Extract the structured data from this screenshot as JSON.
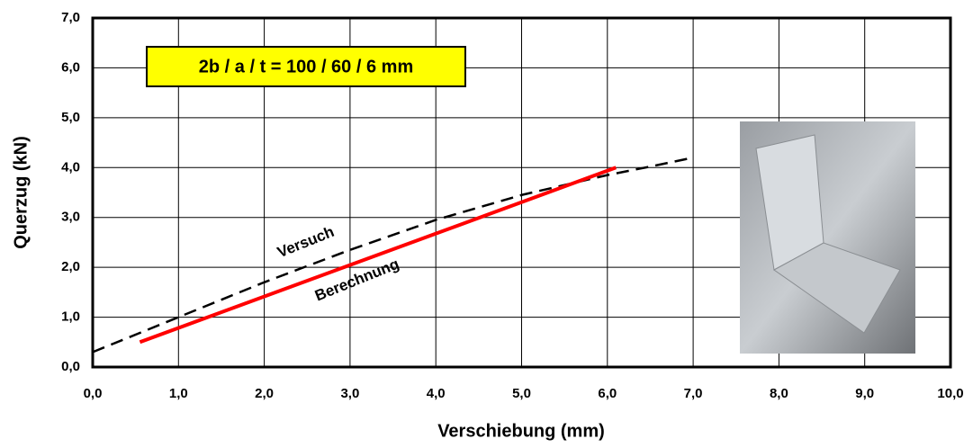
{
  "chart_data": {
    "type": "line",
    "title": "2b / a / t = 100 / 60 / 6 mm",
    "x_label": "Verschiebung  (mm)",
    "y_label": "Querzug  (kN)",
    "annotations": [
      "Versuch",
      "Berechnung"
    ],
    "xlim": [
      0,
      10
    ],
    "ylim": [
      0,
      7
    ],
    "grid": true,
    "xticks": [
      {
        "value": 0,
        "label": "0,0"
      },
      {
        "value": 1,
        "label": "1,0"
      },
      {
        "value": 2,
        "label": "2,0"
      },
      {
        "value": 3,
        "label": "3,0"
      },
      {
        "value": 4,
        "label": "4,0"
      },
      {
        "value": 5,
        "label": "5,0"
      },
      {
        "value": 6,
        "label": "6,0"
      },
      {
        "value": 7,
        "label": "7,0"
      },
      {
        "value": 8,
        "label": "8,0"
      },
      {
        "value": 9,
        "label": "9,0"
      },
      {
        "value": 10,
        "label": "10,0"
      }
    ],
    "yticks": [
      {
        "value": 0,
        "label": "0,0"
      },
      {
        "value": 1,
        "label": "1,0"
      },
      {
        "value": 2,
        "label": "2,0"
      },
      {
        "value": 3,
        "label": "3,0"
      },
      {
        "value": 4,
        "label": "4,0"
      },
      {
        "value": 5,
        "label": "5,0"
      },
      {
        "value": 6,
        "label": "6,0"
      },
      {
        "value": 7,
        "label": "7,0"
      }
    ],
    "series": [
      {
        "name": "Versuch",
        "color": "#000000",
        "dashed": true,
        "x": [
          0,
          1,
          2,
          3,
          4,
          5,
          6,
          6.5,
          7
        ],
        "values": [
          0.3,
          1.0,
          1.7,
          2.35,
          2.95,
          3.45,
          3.85,
          4.02,
          4.2
        ]
      },
      {
        "name": "Berechnung",
        "color": "#ff0000",
        "dashed": false,
        "x": [
          0.55,
          6.1
        ],
        "values": [
          0.5,
          4.0
        ]
      }
    ]
  }
}
